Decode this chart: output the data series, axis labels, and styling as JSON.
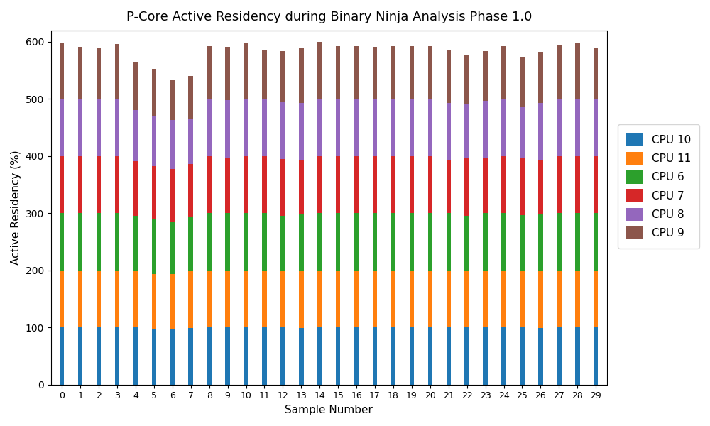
{
  "title": "P-Core Active Residency during Binary Ninja Analysis Phase 1.0",
  "xlabel": "Sample Number",
  "ylabel": "Active Residency (%)",
  "cpus": [
    "CPU 10",
    "CPU 11",
    "CPU 6",
    "CPU 7",
    "CPU 8",
    "CPU 9"
  ],
  "colors": [
    "#1f77b4",
    "#ff7f0e",
    "#2ca02c",
    "#d62728",
    "#9467bd",
    "#8c564b"
  ],
  "samples": 30,
  "data": {
    "CPU 10": [
      100,
      100,
      100,
      100,
      100,
      97,
      97,
      99,
      100,
      100,
      100,
      100,
      100,
      99,
      100,
      100,
      100,
      100,
      100,
      100,
      100,
      100,
      100,
      100,
      100,
      100,
      99,
      100,
      100,
      100
    ],
    "CPU 11": [
      100,
      100,
      100,
      100,
      98,
      97,
      97,
      99,
      100,
      100,
      100,
      100,
      100,
      100,
      100,
      100,
      100,
      100,
      100,
      100,
      100,
      100,
      99,
      100,
      100,
      98,
      99,
      100,
      100,
      100
    ],
    "CPU 6": [
      100,
      100,
      100,
      100,
      98,
      95,
      90,
      95,
      100,
      100,
      100,
      100,
      95,
      100,
      100,
      100,
      100,
      100,
      100,
      100,
      100,
      100,
      97,
      100,
      100,
      99,
      100,
      100,
      100,
      100
    ],
    "CPU 7": [
      100,
      100,
      100,
      100,
      95,
      93,
      93,
      93,
      100,
      98,
      100,
      100,
      100,
      94,
      100,
      100,
      100,
      100,
      100,
      100,
      100,
      94,
      100,
      97,
      100,
      100,
      95,
      100,
      100,
      100
    ],
    "CPU 8": [
      100,
      100,
      100,
      100,
      90,
      88,
      86,
      80,
      99,
      100,
      100,
      99,
      100,
      100,
      100,
      100,
      100,
      99,
      100,
      100,
      100,
      99,
      94,
      100,
      100,
      90,
      100,
      99,
      100,
      100
    ],
    "CPU 9": [
      97,
      91,
      89,
      96,
      83,
      83,
      70,
      74,
      93,
      93,
      97,
      87,
      89,
      96,
      100,
      92,
      92,
      92,
      93,
      93,
      93,
      93,
      88,
      87,
      93,
      87,
      90,
      95,
      97,
      90
    ]
  },
  "ylim": [
    0,
    620
  ],
  "yticks": [
    0,
    100,
    200,
    300,
    400,
    500,
    600
  ],
  "figsize": [
    10,
    6
  ],
  "dpi": 100,
  "bar_width": 0.25
}
